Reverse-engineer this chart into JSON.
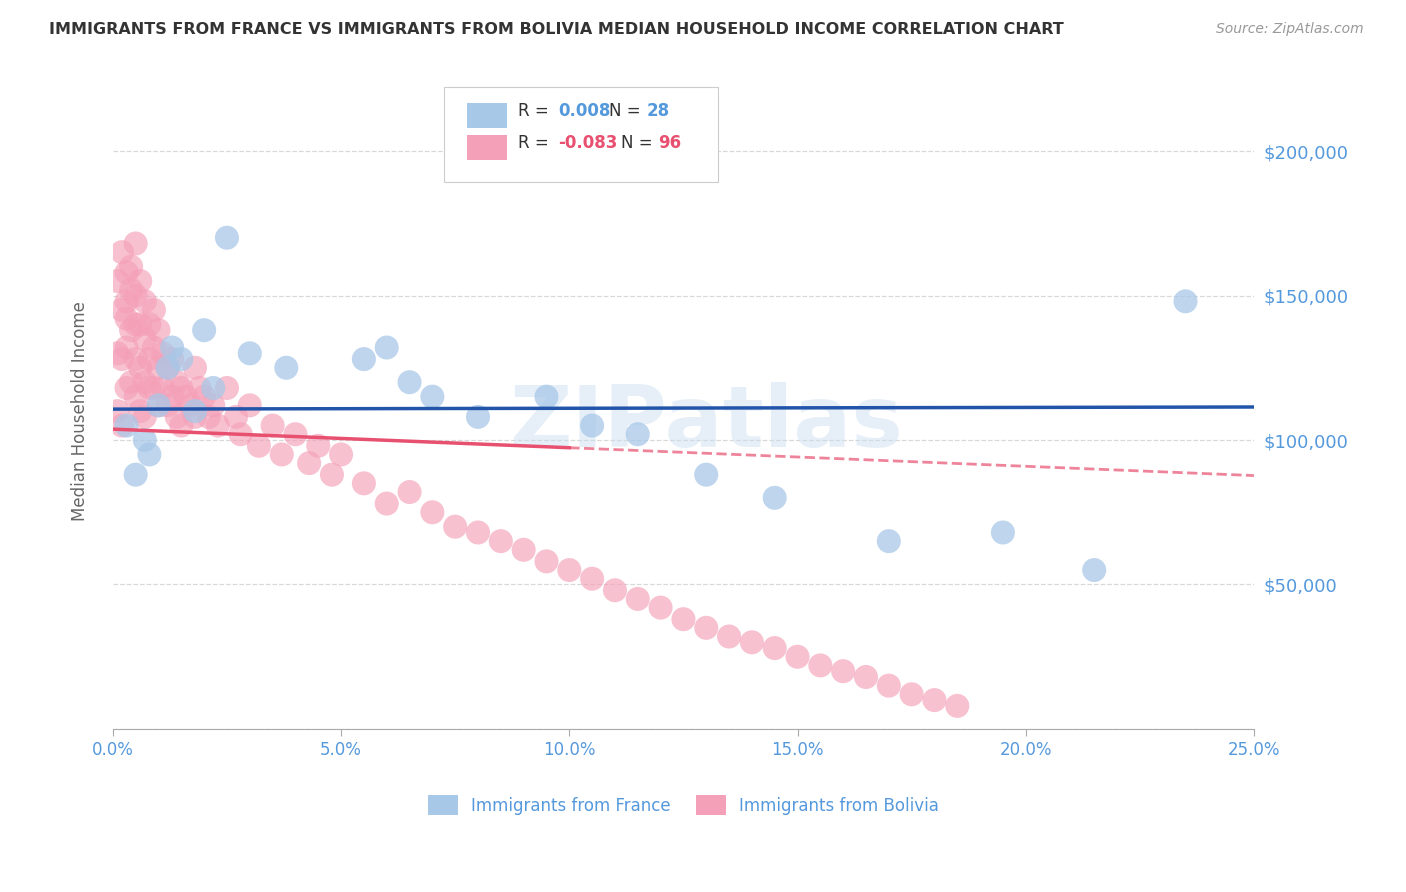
{
  "title": "IMMIGRANTS FROM FRANCE VS IMMIGRANTS FROM BOLIVIA MEDIAN HOUSEHOLD INCOME CORRELATION CHART",
  "source": "Source: ZipAtlas.com",
  "ylabel": "Median Household Income",
  "xlim": [
    0,
    0.25
  ],
  "ylim": [
    0,
    220000
  ],
  "yticks": [
    0,
    50000,
    100000,
    150000,
    200000
  ],
  "ytick_labels": [
    "",
    "$50,000",
    "$100,000",
    "$150,000",
    "$200,000"
  ],
  "xtick_labels": [
    "0.0%",
    "5.0%",
    "10.0%",
    "15.0%",
    "20.0%",
    "25.0%"
  ],
  "xtick_vals": [
    0.0,
    0.05,
    0.1,
    0.15,
    0.2,
    0.25
  ],
  "france_R": 0.008,
  "france_N": 28,
  "bolivia_R": -0.083,
  "bolivia_N": 96,
  "france_color": "#a8c8e8",
  "bolivia_color": "#f4a0b8",
  "france_line_color": "#2255aa",
  "bolivia_line_color": "#e85070",
  "legend_france_label": "Immigrants from France",
  "legend_bolivia_label": "Immigrants from Bolivia",
  "background_color": "#ffffff",
  "grid_color": "#d8d8d8",
  "title_color": "#333333",
  "axis_label_color": "#666666",
  "right_tick_color": "#5599dd",
  "watermark": "ZIPatlas",
  "france_x": [
    0.003,
    0.005,
    0.007,
    0.008,
    0.01,
    0.012,
    0.013,
    0.015,
    0.018,
    0.02,
    0.022,
    0.025,
    0.03,
    0.038,
    0.055,
    0.06,
    0.065,
    0.07,
    0.08,
    0.095,
    0.105,
    0.115,
    0.13,
    0.145,
    0.17,
    0.195,
    0.215,
    0.235
  ],
  "france_y": [
    105000,
    88000,
    100000,
    95000,
    112000,
    125000,
    132000,
    128000,
    110000,
    138000,
    118000,
    170000,
    130000,
    125000,
    128000,
    132000,
    120000,
    115000,
    108000,
    115000,
    105000,
    102000,
    88000,
    80000,
    65000,
    68000,
    55000,
    148000
  ],
  "bolivia_x": [
    0.001,
    0.001,
    0.001,
    0.002,
    0.002,
    0.002,
    0.002,
    0.003,
    0.003,
    0.003,
    0.003,
    0.003,
    0.004,
    0.004,
    0.004,
    0.004,
    0.005,
    0.005,
    0.005,
    0.005,
    0.005,
    0.006,
    0.006,
    0.006,
    0.006,
    0.007,
    0.007,
    0.007,
    0.007,
    0.008,
    0.008,
    0.008,
    0.009,
    0.009,
    0.009,
    0.01,
    0.01,
    0.01,
    0.011,
    0.011,
    0.012,
    0.012,
    0.013,
    0.013,
    0.014,
    0.014,
    0.015,
    0.015,
    0.016,
    0.017,
    0.018,
    0.018,
    0.019,
    0.02,
    0.021,
    0.022,
    0.023,
    0.025,
    0.027,
    0.028,
    0.03,
    0.032,
    0.035,
    0.037,
    0.04,
    0.043,
    0.045,
    0.048,
    0.05,
    0.055,
    0.06,
    0.065,
    0.07,
    0.075,
    0.08,
    0.085,
    0.09,
    0.095,
    0.1,
    0.105,
    0.11,
    0.115,
    0.12,
    0.125,
    0.13,
    0.135,
    0.14,
    0.145,
    0.15,
    0.155,
    0.16,
    0.165,
    0.17,
    0.175,
    0.18,
    0.185
  ],
  "bolivia_y": [
    110000,
    130000,
    155000,
    145000,
    165000,
    128000,
    105000,
    158000,
    148000,
    132000,
    118000,
    142000,
    160000,
    152000,
    138000,
    120000,
    150000,
    168000,
    140000,
    128000,
    115000,
    155000,
    140000,
    125000,
    110000,
    148000,
    135000,
    120000,
    108000,
    140000,
    128000,
    118000,
    145000,
    132000,
    118000,
    138000,
    125000,
    112000,
    130000,
    118000,
    125000,
    112000,
    128000,
    115000,
    120000,
    108000,
    118000,
    105000,
    115000,
    112000,
    125000,
    108000,
    118000,
    115000,
    108000,
    112000,
    105000,
    118000,
    108000,
    102000,
    112000,
    98000,
    105000,
    95000,
    102000,
    92000,
    98000,
    88000,
    95000,
    85000,
    78000,
    82000,
    75000,
    70000,
    68000,
    65000,
    62000,
    58000,
    55000,
    52000,
    48000,
    45000,
    42000,
    38000,
    35000,
    32000,
    30000,
    28000,
    25000,
    22000,
    20000,
    18000,
    15000,
    12000,
    10000,
    8000
  ]
}
